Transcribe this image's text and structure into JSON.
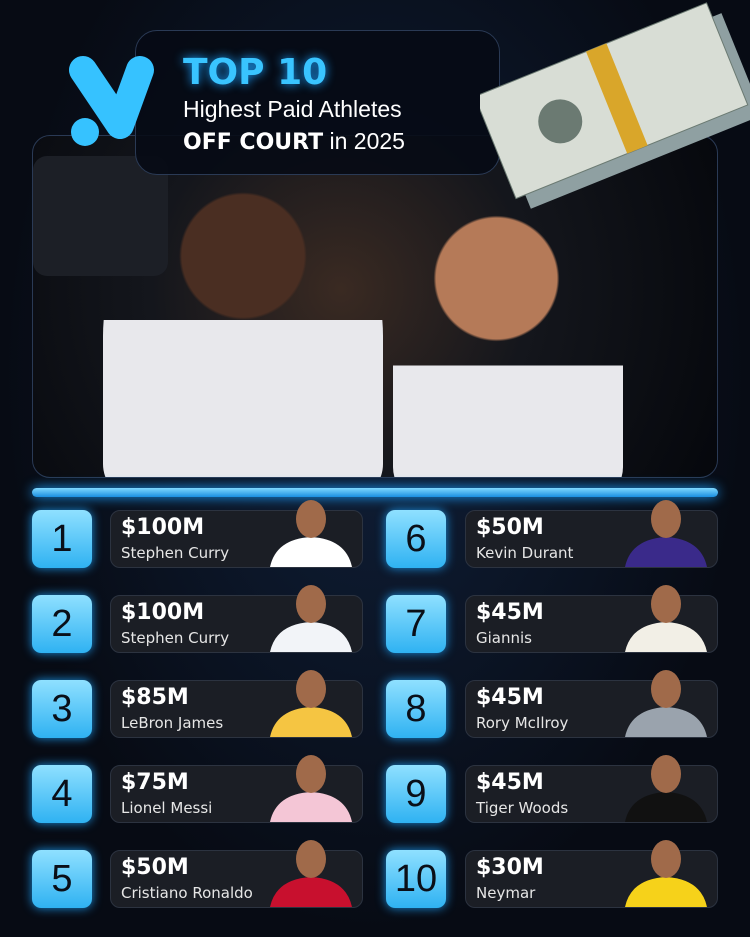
{
  "header": {
    "title": "TOP 10",
    "subtitle": "Highest Paid Athletes",
    "line3_bold": "OFF COURT",
    "line3_rest": "in 2025"
  },
  "colors": {
    "accent": "#39c4ff",
    "background": "#070b14",
    "card": "#1b1e25"
  },
  "rankings": [
    {
      "rank": "1",
      "amount": "$100M",
      "name": "Stephen Curry",
      "jersey": "#ffffff"
    },
    {
      "rank": "2",
      "amount": "$100M",
      "name": "Stephen Curry",
      "jersey": "#f2f4f8"
    },
    {
      "rank": "3",
      "amount": "$85M",
      "name": "LeBron James",
      "jersey": "#f5c542"
    },
    {
      "rank": "4",
      "amount": "$75M",
      "name": "Lionel Messi",
      "jersey": "#f4c6d6"
    },
    {
      "rank": "5",
      "amount": "$50M",
      "name": "Cristiano Ronaldo",
      "jersey": "#c8102e"
    },
    {
      "rank": "6",
      "amount": "$50M",
      "name": "Kevin Durant",
      "jersey": "#3a2a8a"
    },
    {
      "rank": "7",
      "amount": "$45M",
      "name": "Giannis",
      "jersey": "#f2efe6"
    },
    {
      "rank": "8",
      "amount": "$45M",
      "name": "Rory McIlroy",
      "jersey": "#9aa3ad"
    },
    {
      "rank": "9",
      "amount": "$45M",
      "name": "Tiger Woods",
      "jersey": "#111111"
    },
    {
      "rank": "10",
      "amount": "$30M",
      "name": "Neymar",
      "jersey": "#f6d21a"
    }
  ]
}
